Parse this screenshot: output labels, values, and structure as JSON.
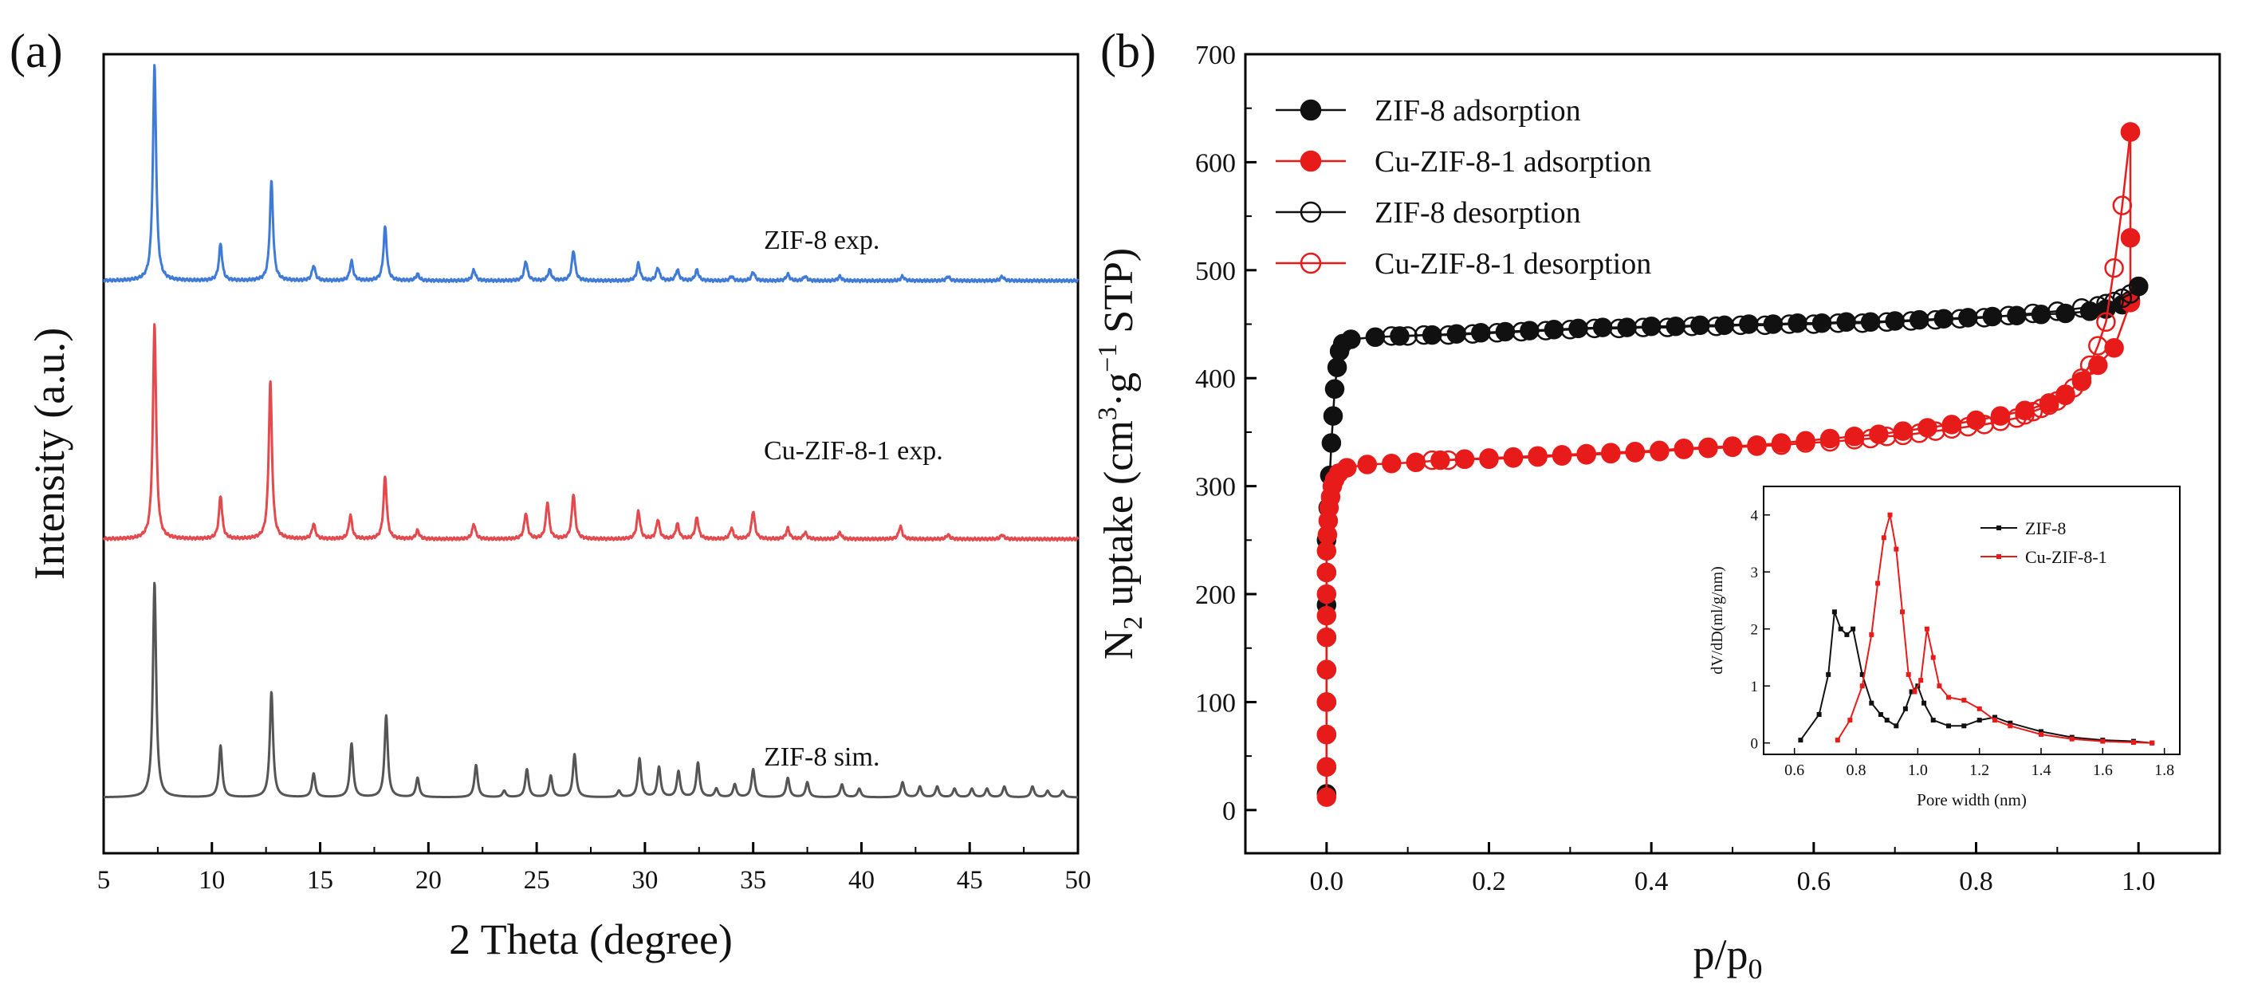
{
  "chart_data": [
    {
      "panel_label": "(a)",
      "type": "line",
      "title": "",
      "xlabel": "2 Theta (degree)",
      "ylabel": "Intensity (a.u.)",
      "xlim": [
        5,
        50
      ],
      "xticks": [
        5,
        10,
        15,
        20,
        25,
        30,
        35,
        40,
        45,
        50
      ],
      "series": [
        {
          "name": "ZIF-8 exp.",
          "color": "#3f7bd6",
          "offset": 2.4,
          "peaks": [
            [
              7.35,
              1.0
            ],
            [
              10.4,
              0.17
            ],
            [
              12.75,
              0.46
            ],
            [
              14.7,
              0.07
            ],
            [
              16.45,
              0.09
            ],
            [
              18.0,
              0.25
            ],
            [
              19.5,
              0.03
            ],
            [
              22.1,
              0.05
            ],
            [
              24.5,
              0.09
            ],
            [
              25.6,
              0.05
            ],
            [
              26.7,
              0.14
            ],
            [
              29.7,
              0.08
            ],
            [
              30.6,
              0.06
            ],
            [
              31.5,
              0.05
            ],
            [
              32.4,
              0.05
            ],
            [
              34.0,
              0.02
            ],
            [
              35.0,
              0.04
            ],
            [
              36.6,
              0.03
            ],
            [
              37.4,
              0.02
            ],
            [
              39.0,
              0.02
            ],
            [
              41.9,
              0.02
            ],
            [
              44.0,
              0.02
            ],
            [
              46.5,
              0.02
            ]
          ]
        },
        {
          "name": "Cu-ZIF-8-1 exp.",
          "color": "#e3494d",
          "offset": 1.2,
          "peaks": [
            [
              7.35,
              1.0
            ],
            [
              10.4,
              0.2
            ],
            [
              12.7,
              0.73
            ],
            [
              14.7,
              0.07
            ],
            [
              16.4,
              0.11
            ],
            [
              18.0,
              0.29
            ],
            [
              19.5,
              0.04
            ],
            [
              22.1,
              0.07
            ],
            [
              24.5,
              0.12
            ],
            [
              25.5,
              0.17
            ],
            [
              26.7,
              0.21
            ],
            [
              29.7,
              0.13
            ],
            [
              30.6,
              0.09
            ],
            [
              31.5,
              0.07
            ],
            [
              32.4,
              0.1
            ],
            [
              34.0,
              0.05
            ],
            [
              35.0,
              0.13
            ],
            [
              36.6,
              0.05
            ],
            [
              37.4,
              0.03
            ],
            [
              39.0,
              0.03
            ],
            [
              41.8,
              0.06
            ],
            [
              44.0,
              0.02
            ],
            [
              46.5,
              0.02
            ]
          ]
        },
        {
          "name": "ZIF-8 sim.",
          "color": "#555555",
          "offset": 0.0,
          "peaks": [
            [
              7.35,
              1.0
            ],
            [
              10.4,
              0.24
            ],
            [
              12.75,
              0.49
            ],
            [
              14.7,
              0.11
            ],
            [
              16.45,
              0.25
            ],
            [
              18.05,
              0.38
            ],
            [
              19.5,
              0.09
            ],
            [
              22.2,
              0.15
            ],
            [
              23.5,
              0.03
            ],
            [
              24.55,
              0.13
            ],
            [
              25.65,
              0.1
            ],
            [
              26.75,
              0.2
            ],
            [
              28.8,
              0.03
            ],
            [
              29.75,
              0.18
            ],
            [
              30.65,
              0.14
            ],
            [
              31.55,
              0.12
            ],
            [
              32.45,
              0.16
            ],
            [
              33.3,
              0.04
            ],
            [
              34.15,
              0.06
            ],
            [
              35.0,
              0.13
            ],
            [
              36.6,
              0.09
            ],
            [
              37.5,
              0.07
            ],
            [
              39.1,
              0.06
            ],
            [
              39.9,
              0.04
            ],
            [
              41.9,
              0.07
            ],
            [
              42.7,
              0.05
            ],
            [
              43.5,
              0.05
            ],
            [
              44.3,
              0.04
            ],
            [
              45.1,
              0.04
            ],
            [
              45.8,
              0.04
            ],
            [
              46.6,
              0.05
            ],
            [
              47.9,
              0.05
            ],
            [
              48.6,
              0.03
            ],
            [
              49.3,
              0.03
            ]
          ]
        }
      ],
      "annotations": [
        "ZIF-8 exp.",
        "Cu-ZIF-8-1 exp.",
        "ZIF-8 sim."
      ]
    },
    {
      "panel_label": "(b)",
      "type": "line",
      "title": "",
      "xlabel_main": "p/p",
      "xlabel_sub": "0",
      "ylabel_parts": [
        "N",
        "2",
        " uptake (cm",
        "3",
        "·g",
        "−1",
        " STP)"
      ],
      "xlim": [
        -0.1,
        1.1
      ],
      "ylim": [
        -40,
        700
      ],
      "xticks": [
        "0.0",
        "0.2",
        "0.4",
        "0.6",
        "0.8",
        "1.0"
      ],
      "xtick_values": [
        0,
        0.2,
        0.4,
        0.6,
        0.8,
        1.0
      ],
      "yticks": [
        "0",
        "100",
        "200",
        "300",
        "400",
        "500",
        "600",
        "700"
      ],
      "ytick_values": [
        0,
        100,
        200,
        300,
        400,
        500,
        600,
        700
      ],
      "legend_position": "top-left",
      "series": [
        {
          "name": "ZIF-8 adsorption",
          "color": "#111111",
          "marker": "filled-circle",
          "x": [
            0.0,
            0.0,
            0.0,
            0.0,
            0.0,
            0.0,
            0.0,
            0.0,
            0.0,
            0.002,
            0.004,
            0.006,
            0.008,
            0.01,
            0.013,
            0.016,
            0.02,
            0.03,
            0.06,
            0.09,
            0.13,
            0.16,
            0.19,
            0.22,
            0.25,
            0.28,
            0.31,
            0.34,
            0.37,
            0.4,
            0.43,
            0.46,
            0.49,
            0.52,
            0.55,
            0.58,
            0.61,
            0.64,
            0.67,
            0.7,
            0.73,
            0.76,
            0.79,
            0.82,
            0.85,
            0.88,
            0.91,
            0.94,
            0.96,
            0.98,
            0.99,
            1.0
          ],
          "y": [
            15,
            40,
            70,
            100,
            130,
            160,
            190,
            220,
            250,
            280,
            310,
            340,
            365,
            390,
            410,
            425,
            432,
            436,
            438,
            439,
            440,
            441,
            442,
            443,
            444,
            445,
            446,
            447,
            447,
            448,
            448,
            449,
            449,
            450,
            450,
            451,
            451,
            452,
            452,
            453,
            454,
            455,
            456,
            457,
            458,
            459,
            460,
            462,
            464,
            468,
            472,
            485
          ]
        },
        {
          "name": "Cu-ZIF-8-1 adsorption",
          "color": "#e81b1b",
          "marker": "filled-circle",
          "x": [
            0.0,
            0.0,
            0.0,
            0.0,
            0.0,
            0.0,
            0.0,
            0.0,
            0.0,
            0.0,
            0.001,
            0.002,
            0.003,
            0.005,
            0.007,
            0.01,
            0.015,
            0.025,
            0.05,
            0.08,
            0.11,
            0.14,
            0.17,
            0.2,
            0.23,
            0.26,
            0.29,
            0.32,
            0.35,
            0.38,
            0.41,
            0.44,
            0.47,
            0.5,
            0.53,
            0.56,
            0.59,
            0.62,
            0.65,
            0.68,
            0.71,
            0.74,
            0.77,
            0.8,
            0.83,
            0.86,
            0.89,
            0.91,
            0.93,
            0.95,
            0.97,
            0.99,
            0.99,
            0.99
          ],
          "y": [
            12,
            40,
            70,
            100,
            130,
            160,
            180,
            200,
            220,
            240,
            255,
            268,
            280,
            290,
            300,
            306,
            312,
            317,
            320,
            321,
            322,
            324,
            325,
            326,
            327,
            328,
            329,
            330,
            331,
            332,
            333,
            335,
            336,
            337,
            338,
            340,
            342,
            344,
            346,
            348,
            351,
            354,
            357,
            361,
            365,
            370,
            377,
            385,
            397,
            412,
            428,
            470,
            530,
            628
          ]
        },
        {
          "name": "ZIF-8 desorption",
          "color": "#111111",
          "marker": "open-circle",
          "x": [
            1.0,
            0.99,
            0.98,
            0.97,
            0.96,
            0.95,
            0.93,
            0.9,
            0.87,
            0.84,
            0.81,
            0.78,
            0.75,
            0.72,
            0.69,
            0.66,
            0.63,
            0.6,
            0.57,
            0.54,
            0.51,
            0.48,
            0.45,
            0.42,
            0.39,
            0.36,
            0.33,
            0.3,
            0.27,
            0.24,
            0.21,
            0.18,
            0.15,
            0.12,
            0.1,
            0.08
          ],
          "y": [
            485,
            478,
            474,
            471,
            469,
            467,
            465,
            462,
            460,
            458,
            456,
            455,
            454,
            453,
            452,
            451,
            451,
            450,
            450,
            449,
            449,
            448,
            448,
            447,
            447,
            446,
            446,
            445,
            444,
            443,
            442,
            441,
            440,
            440,
            439,
            439
          ]
        },
        {
          "name": "Cu-ZIF-8-1 desorption",
          "color": "#e81b1b",
          "marker": "open-circle",
          "x": [
            0.99,
            0.98,
            0.97,
            0.96,
            0.95,
            0.94,
            0.93,
            0.92,
            0.91,
            0.9,
            0.89,
            0.88,
            0.87,
            0.86,
            0.85,
            0.83,
            0.81,
            0.79,
            0.77,
            0.75,
            0.73,
            0.71,
            0.69,
            0.67,
            0.65,
            0.62,
            0.59,
            0.56,
            0.53,
            0.5,
            0.47,
            0.44,
            0.41,
            0.38,
            0.35,
            0.32,
            0.29,
            0.26,
            0.23,
            0.2,
            0.17,
            0.15,
            0.13
          ],
          "y": [
            628,
            560,
            502,
            452,
            430,
            412,
            400,
            391,
            384,
            379,
            375,
            372,
            369,
            366,
            363,
            360,
            357,
            355,
            353,
            351,
            349,
            347,
            346,
            344,
            343,
            341,
            340,
            338,
            337,
            336,
            335,
            334,
            332,
            331,
            330,
            329,
            328,
            327,
            326,
            325,
            325,
            324,
            324
          ]
        }
      ],
      "inset": {
        "type": "line",
        "xlabel": "Pore width (nm)",
        "ylabel": "dV/dD(ml/g/nm)",
        "xlim": [
          0.5,
          1.85
        ],
        "ylim": [
          -0.2,
          4.5
        ],
        "xticks": [
          "0.6",
          "0.8",
          "1.0",
          "1.2",
          "1.4",
          "1.6",
          "1.8"
        ],
        "xtick_values": [
          0.6,
          0.8,
          1.0,
          1.2,
          1.4,
          1.6,
          1.8
        ],
        "yticks": [
          "0",
          "1",
          "2",
          "3",
          "4"
        ],
        "ytick_values": [
          0,
          1,
          2,
          3,
          4
        ],
        "legend_position": "top-right",
        "series": [
          {
            "name": "ZIF-8",
            "color": "#111111",
            "x": [
              0.62,
              0.68,
              0.71,
              0.73,
              0.75,
              0.77,
              0.79,
              0.82,
              0.85,
              0.88,
              0.9,
              0.93,
              0.96,
              0.98,
              1.0,
              1.02,
              1.05,
              1.1,
              1.15,
              1.2,
              1.25,
              1.3,
              1.4,
              1.5,
              1.6,
              1.7,
              1.76
            ],
            "y": [
              0.05,
              0.5,
              1.2,
              2.3,
              2.0,
              1.9,
              2.0,
              1.2,
              0.7,
              0.5,
              0.4,
              0.3,
              0.6,
              0.9,
              1.0,
              0.7,
              0.4,
              0.3,
              0.3,
              0.4,
              0.45,
              0.35,
              0.2,
              0.1,
              0.05,
              0.03,
              0.0
            ]
          },
          {
            "name": "Cu-ZIF-8-1",
            "color": "#e81b1b",
            "x": [
              0.74,
              0.78,
              0.82,
              0.85,
              0.87,
              0.89,
              0.91,
              0.93,
              0.95,
              0.97,
              0.99,
              1.01,
              1.03,
              1.05,
              1.07,
              1.1,
              1.15,
              1.2,
              1.25,
              1.3,
              1.4,
              1.5,
              1.6,
              1.7,
              1.76
            ],
            "y": [
              0.05,
              0.4,
              1.0,
              1.9,
              2.8,
              3.6,
              4.0,
              3.4,
              2.3,
              1.2,
              0.9,
              1.1,
              2.0,
              1.5,
              1.0,
              0.8,
              0.75,
              0.6,
              0.4,
              0.3,
              0.15,
              0.07,
              0.03,
              0.01,
              0.0
            ]
          }
        ]
      }
    }
  ]
}
